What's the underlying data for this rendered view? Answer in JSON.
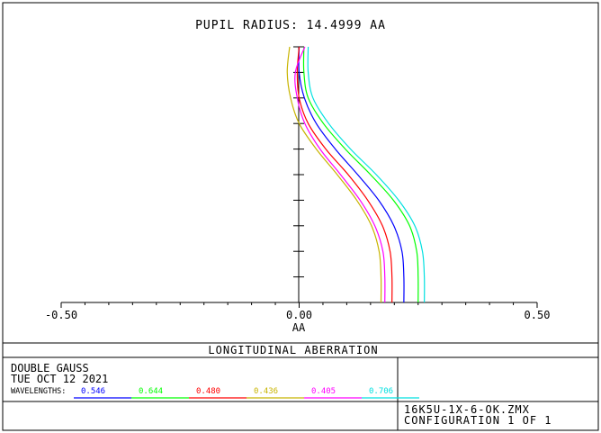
{
  "pupil_label": "PUPIL RADIUS: 14.4999  AA",
  "plot_title": "LONGITUDINAL ABERRATION",
  "lens_name": "DOUBLE GAUSS",
  "date": "TUE OCT 12 2021",
  "wavelengths_label": "WAVELENGTHS:",
  "file_name": "16K5U-1X-6-OK.ZMX",
  "configuration": "CONFIGURATION 1 OF 1",
  "chart_data": {
    "type": "line",
    "xlabel": "AA",
    "ylabel": "",
    "xlim": [
      -0.5,
      0.5
    ],
    "ylim": [
      0,
      1
    ],
    "x_ticks": [
      -0.5,
      0.0,
      0.5
    ],
    "x_tick_labels": [
      "-0.50",
      "0.00",
      "0.50"
    ],
    "grid": false,
    "series": [
      {
        "name": "0.546",
        "color": "#0000ff",
        "points": [
          [
            0.0,
            1.0
          ],
          [
            0.0,
            0.9
          ],
          [
            0.011,
            0.8
          ],
          [
            0.036,
            0.7
          ],
          [
            0.076,
            0.6
          ],
          [
            0.123,
            0.5
          ],
          [
            0.167,
            0.4
          ],
          [
            0.199,
            0.3
          ],
          [
            0.216,
            0.2
          ],
          [
            0.22,
            0.1
          ],
          [
            0.22,
            0.0
          ]
        ]
      },
      {
        "name": "0.644",
        "color": "#00ff00",
        "points": [
          [
            0.01,
            1.0
          ],
          [
            0.01,
            0.9
          ],
          [
            0.019,
            0.8
          ],
          [
            0.051,
            0.7
          ],
          [
            0.097,
            0.6
          ],
          [
            0.15,
            0.5
          ],
          [
            0.198,
            0.4
          ],
          [
            0.232,
            0.3
          ],
          [
            0.247,
            0.2
          ],
          [
            0.25,
            0.1
          ],
          [
            0.25,
            0.0
          ]
        ]
      },
      {
        "name": "0.480",
        "color": "#ff0000",
        "points": [
          [
            0.0,
            1.0
          ],
          [
            -0.004,
            0.9
          ],
          [
            0.0,
            0.8
          ],
          [
            0.019,
            0.7
          ],
          [
            0.056,
            0.6
          ],
          [
            0.103,
            0.5
          ],
          [
            0.144,
            0.4
          ],
          [
            0.175,
            0.3
          ],
          [
            0.191,
            0.2
          ],
          [
            0.195,
            0.1
          ],
          [
            0.195,
            0.0
          ]
        ]
      },
      {
        "name": "0.436",
        "color": "#c8b400",
        "points": [
          [
            -0.02,
            1.0
          ],
          [
            -0.025,
            0.9
          ],
          [
            -0.018,
            0.8
          ],
          [
            0.0,
            0.7
          ],
          [
            0.036,
            0.6
          ],
          [
            0.08,
            0.5
          ],
          [
            0.121,
            0.4
          ],
          [
            0.152,
            0.3
          ],
          [
            0.168,
            0.2
          ],
          [
            0.172,
            0.1
          ],
          [
            0.172,
            0.0
          ]
        ]
      },
      {
        "name": "0.405",
        "color": "#ff00ff",
        "points": [
          [
            0.012,
            1.0
          ],
          [
            -0.008,
            0.9
          ],
          [
            -0.004,
            0.8
          ],
          [
            0.012,
            0.7
          ],
          [
            0.044,
            0.6
          ],
          [
            0.087,
            0.5
          ],
          [
            0.128,
            0.4
          ],
          [
            0.159,
            0.3
          ],
          [
            0.176,
            0.2
          ],
          [
            0.18,
            0.1
          ],
          [
            0.18,
            0.0
          ]
        ]
      },
      {
        "name": "0.706",
        "color": "#00e0e0",
        "points": [
          [
            0.019,
            1.0
          ],
          [
            0.019,
            0.9
          ],
          [
            0.029,
            0.8
          ],
          [
            0.062,
            0.7
          ],
          [
            0.108,
            0.6
          ],
          [
            0.162,
            0.5
          ],
          [
            0.209,
            0.4
          ],
          [
            0.243,
            0.3
          ],
          [
            0.259,
            0.2
          ],
          [
            0.263,
            0.1
          ],
          [
            0.263,
            0.0
          ]
        ]
      }
    ]
  }
}
